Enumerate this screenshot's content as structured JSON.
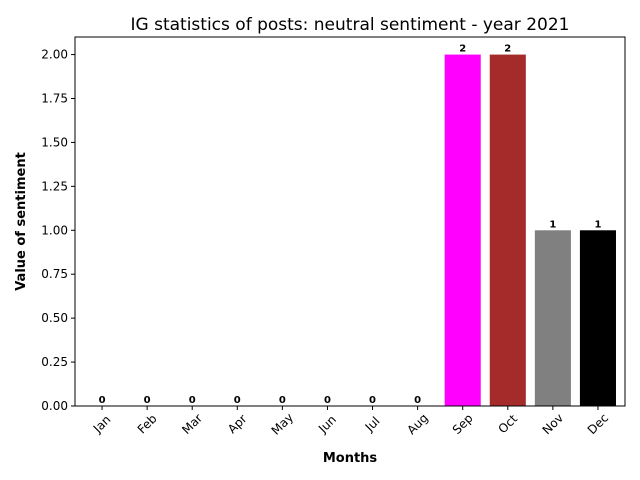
{
  "chart_data": {
    "type": "bar",
    "title": "IG statistics of posts: neutral sentiment - year 2021",
    "xlabel": "Months",
    "ylabel": "Value of sentiment",
    "categories": [
      "Jan",
      "Feb",
      "Mar",
      "Apr",
      "May",
      "Jun",
      "Jul",
      "Aug",
      "Sep",
      "Oct",
      "Nov",
      "Dec"
    ],
    "values": [
      0,
      0,
      0,
      0,
      0,
      0,
      0,
      0,
      2,
      2,
      1,
      1
    ],
    "data_labels": [
      "0",
      "0",
      "0",
      "0",
      "0",
      "0",
      "0",
      "0",
      "2",
      "2",
      "1",
      "1"
    ],
    "bar_colors": [
      "#1f77b4",
      "#1f77b4",
      "#1f77b4",
      "#1f77b4",
      "#1f77b4",
      "#1f77b4",
      "#1f77b4",
      "#1f77b4",
      "#ff00ff",
      "#a52a2a",
      "#808080",
      "#000000"
    ],
    "ylim": [
      0,
      2.1
    ],
    "yticks": [
      0,
      0.25,
      0.5,
      0.75,
      1.0,
      1.25,
      1.5,
      1.75,
      2.0
    ],
    "ytick_labels": [
      "0.00",
      "0.25",
      "0.50",
      "0.75",
      "1.00",
      "1.25",
      "1.50",
      "1.75",
      "2.00"
    ],
    "grid": false,
    "legend": "none"
  }
}
